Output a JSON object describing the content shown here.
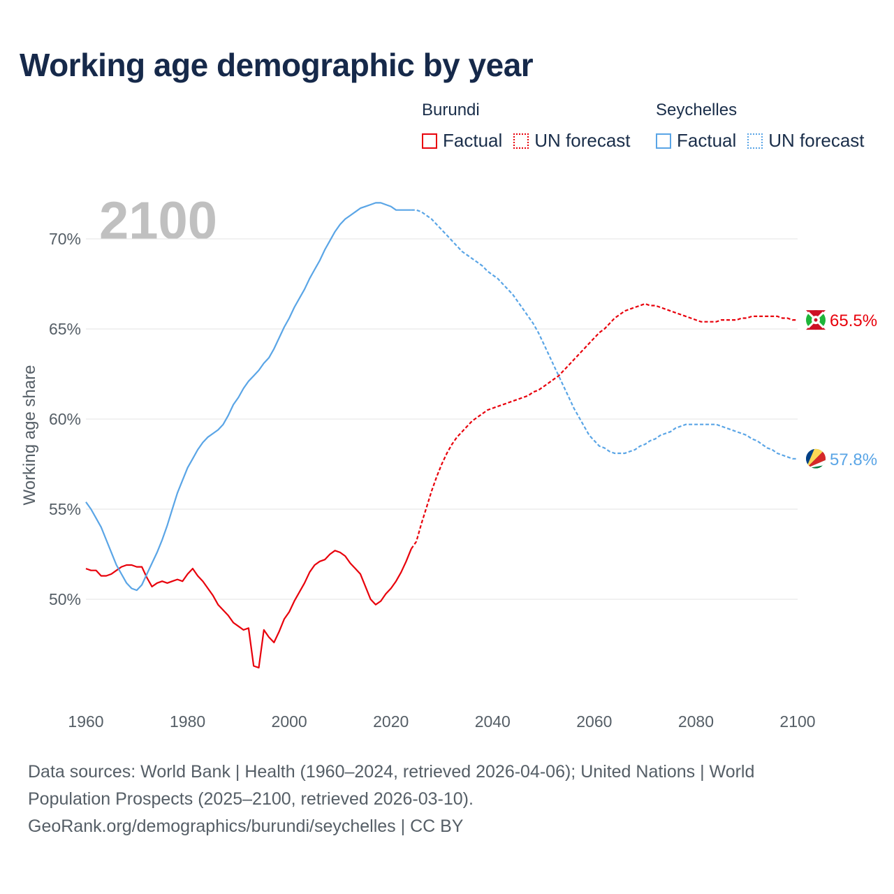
{
  "title": "Working age demographic by year",
  "legend": {
    "groups": [
      {
        "country": "Burundi",
        "color": "#e8000b",
        "factual_label": "Factual",
        "forecast_label": "UN forecast"
      },
      {
        "country": "Seychelles",
        "color": "#5aa5e6",
        "factual_label": "Factual",
        "forecast_label": "UN forecast"
      }
    ]
  },
  "year_watermark": "2100",
  "footer": {
    "line1": "Data sources: World Bank | Health (1960–2024, retrieved 2026-04-06); United Nations | World",
    "line2": "Population Prospects (2025–2100, retrieved 2026-03-10).",
    "line3": "GeoRank.org/demographics/burundi/seychelles | CC BY"
  },
  "chart_data": {
    "type": "line",
    "title": "Working age demographic by year",
    "xlabel": "",
    "ylabel": "Working age share",
    "xlim": [
      1960,
      2100
    ],
    "ylim": [
      45,
      73
    ],
    "x_ticks": [
      1960,
      1980,
      2000,
      2020,
      2040,
      2060,
      2080,
      2100
    ],
    "x_tick_labels": [
      "1960",
      "1980",
      "2000",
      "2020",
      "2040",
      "2060",
      "2080",
      "2100"
    ],
    "y_ticks": [
      50,
      55,
      60,
      65,
      70
    ],
    "y_tick_labels": [
      "50%",
      "55%",
      "60%",
      "65%",
      "70%"
    ],
    "grid": true,
    "forecast_start": 2025,
    "series": [
      {
        "name": "Burundi",
        "color": "#e8000b",
        "end_label": "65.5%",
        "flag_icon": "burundi-flag-icon",
        "x": [
          1960,
          1961,
          1962,
          1963,
          1964,
          1965,
          1966,
          1967,
          1968,
          1969,
          1970,
          1971,
          1972,
          1973,
          1974,
          1975,
          1976,
          1977,
          1978,
          1979,
          1980,
          1981,
          1982,
          1983,
          1984,
          1985,
          1986,
          1987,
          1988,
          1989,
          1990,
          1991,
          1992,
          1993,
          1994,
          1995,
          1996,
          1997,
          1998,
          1999,
          2000,
          2001,
          2002,
          2003,
          2004,
          2005,
          2006,
          2007,
          2008,
          2009,
          2010,
          2011,
          2012,
          2013,
          2014,
          2015,
          2016,
          2017,
          2018,
          2019,
          2020,
          2021,
          2022,
          2023,
          2024,
          2025,
          2026,
          2027,
          2028,
          2029,
          2030,
          2031,
          2032,
          2033,
          2034,
          2035,
          2036,
          2037,
          2038,
          2039,
          2040,
          2041,
          2042,
          2043,
          2044,
          2045,
          2046,
          2047,
          2048,
          2049,
          2050,
          2051,
          2052,
          2053,
          2054,
          2055,
          2056,
          2057,
          2058,
          2059,
          2060,
          2061,
          2062,
          2063,
          2064,
          2065,
          2066,
          2067,
          2068,
          2069,
          2070,
          2071,
          2072,
          2073,
          2074,
          2075,
          2076,
          2077,
          2078,
          2079,
          2080,
          2081,
          2082,
          2083,
          2084,
          2085,
          2086,
          2087,
          2088,
          2089,
          2090,
          2091,
          2092,
          2093,
          2094,
          2095,
          2096,
          2097,
          2098,
          2099,
          2100
        ],
        "y": [
          51.7,
          51.6,
          51.6,
          51.3,
          51.3,
          51.4,
          51.6,
          51.8,
          51.9,
          51.9,
          51.8,
          51.8,
          51.2,
          50.7,
          50.9,
          51.0,
          50.9,
          51.0,
          51.1,
          51.0,
          51.4,
          51.7,
          51.3,
          51.0,
          50.6,
          50.2,
          49.7,
          49.4,
          49.1,
          48.7,
          48.5,
          48.3,
          48.4,
          46.3,
          46.2,
          48.3,
          47.9,
          47.6,
          48.2,
          48.9,
          49.3,
          49.9,
          50.4,
          50.9,
          51.5,
          51.9,
          52.1,
          52.2,
          52.5,
          52.7,
          52.6,
          52.4,
          52.0,
          51.7,
          51.4,
          50.7,
          50.0,
          49.7,
          49.9,
          50.3,
          50.6,
          51.0,
          51.5,
          52.1,
          52.8,
          53.2,
          54.2,
          55.1,
          56.0,
          56.8,
          57.5,
          58.1,
          58.6,
          59.0,
          59.3,
          59.6,
          59.9,
          60.1,
          60.3,
          60.5,
          60.6,
          60.7,
          60.8,
          60.9,
          61.0,
          61.1,
          61.2,
          61.3,
          61.5,
          61.6,
          61.8,
          62.0,
          62.2,
          62.4,
          62.7,
          63.0,
          63.3,
          63.6,
          63.9,
          64.2,
          64.5,
          64.8,
          65.0,
          65.3,
          65.6,
          65.8,
          66.0,
          66.1,
          66.2,
          66.3,
          66.4,
          66.3,
          66.3,
          66.2,
          66.1,
          66.0,
          65.9,
          65.8,
          65.7,
          65.6,
          65.5,
          65.4,
          65.4,
          65.4,
          65.4,
          65.5,
          65.5,
          65.5,
          65.5,
          65.6,
          65.6,
          65.7,
          65.7,
          65.7,
          65.7,
          65.7,
          65.7,
          65.6,
          65.6,
          65.5,
          65.5
        ]
      },
      {
        "name": "Seychelles",
        "color": "#5aa5e6",
        "end_label": "57.8%",
        "flag_icon": "seychelles-flag-icon",
        "x": [
          1960,
          1961,
          1962,
          1963,
          1964,
          1965,
          1966,
          1967,
          1968,
          1969,
          1970,
          1971,
          1972,
          1973,
          1974,
          1975,
          1976,
          1977,
          1978,
          1979,
          1980,
          1981,
          1982,
          1983,
          1984,
          1985,
          1986,
          1987,
          1988,
          1989,
          1990,
          1991,
          1992,
          1993,
          1994,
          1995,
          1996,
          1997,
          1998,
          1999,
          2000,
          2001,
          2002,
          2003,
          2004,
          2005,
          2006,
          2007,
          2008,
          2009,
          2010,
          2011,
          2012,
          2013,
          2014,
          2015,
          2016,
          2017,
          2018,
          2019,
          2020,
          2021,
          2022,
          2023,
          2024,
          2025,
          2026,
          2027,
          2028,
          2029,
          2030,
          2031,
          2032,
          2033,
          2034,
          2035,
          2036,
          2037,
          2038,
          2039,
          2040,
          2041,
          2042,
          2043,
          2044,
          2045,
          2046,
          2047,
          2048,
          2049,
          2050,
          2051,
          2052,
          2053,
          2054,
          2055,
          2056,
          2057,
          2058,
          2059,
          2060,
          2061,
          2062,
          2063,
          2064,
          2065,
          2066,
          2067,
          2068,
          2069,
          2070,
          2071,
          2072,
          2073,
          2074,
          2075,
          2076,
          2077,
          2078,
          2079,
          2080,
          2081,
          2082,
          2083,
          2084,
          2085,
          2086,
          2087,
          2088,
          2089,
          2090,
          2091,
          2092,
          2093,
          2094,
          2095,
          2096,
          2097,
          2098,
          2099,
          2100
        ],
        "y": [
          55.4,
          55.0,
          54.5,
          54.0,
          53.3,
          52.6,
          51.9,
          51.4,
          50.9,
          50.6,
          50.5,
          50.8,
          51.4,
          52.0,
          52.6,
          53.3,
          54.1,
          55.0,
          55.9,
          56.6,
          57.3,
          57.8,
          58.3,
          58.7,
          59.0,
          59.2,
          59.4,
          59.7,
          60.2,
          60.8,
          61.2,
          61.7,
          62.1,
          62.4,
          62.7,
          63.1,
          63.4,
          63.9,
          64.5,
          65.1,
          65.6,
          66.2,
          66.7,
          67.2,
          67.8,
          68.3,
          68.8,
          69.4,
          69.9,
          70.4,
          70.8,
          71.1,
          71.3,
          71.5,
          71.7,
          71.8,
          71.9,
          72.0,
          72.0,
          71.9,
          71.8,
          71.6,
          71.6,
          71.6,
          71.6,
          71.6,
          71.5,
          71.3,
          71.1,
          70.8,
          70.5,
          70.2,
          69.9,
          69.6,
          69.3,
          69.1,
          68.9,
          68.7,
          68.5,
          68.2,
          68.0,
          67.8,
          67.5,
          67.2,
          66.9,
          66.5,
          66.1,
          65.7,
          65.3,
          64.8,
          64.2,
          63.6,
          63.0,
          62.4,
          61.8,
          61.2,
          60.6,
          60.1,
          59.6,
          59.1,
          58.8,
          58.5,
          58.4,
          58.2,
          58.1,
          58.1,
          58.1,
          58.2,
          58.3,
          58.5,
          58.6,
          58.8,
          58.9,
          59.1,
          59.2,
          59.3,
          59.5,
          59.6,
          59.7,
          59.7,
          59.7,
          59.7,
          59.7,
          59.7,
          59.7,
          59.6,
          59.5,
          59.4,
          59.3,
          59.2,
          59.1,
          58.9,
          58.8,
          58.6,
          58.4,
          58.3,
          58.1,
          58.0,
          57.9,
          57.8,
          57.8
        ]
      }
    ]
  }
}
